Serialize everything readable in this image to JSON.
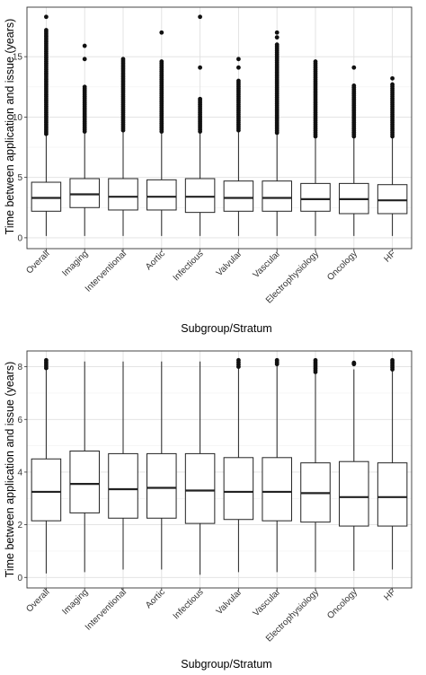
{
  "chart_data": [
    {
      "type": "boxplot",
      "xlabel": "Subgroup/Stratum",
      "ylabel": "Time between application and issue (years)",
      "ylim": [
        -0.9,
        19.1
      ],
      "yticks": [
        0,
        5,
        10,
        15
      ],
      "categories": [
        "Overall",
        "Imaging",
        "Interventional",
        "Aortic",
        "Infectious",
        "Valvular",
        "Vascular",
        "Electrophysiology",
        "Oncology",
        "HF"
      ],
      "boxes": [
        {
          "category": "Overall",
          "whisker_low": 0.15,
          "q1": 2.2,
          "median": 3.3,
          "q3": 4.6,
          "whisker_high": 8.5,
          "outliers_from": 8.6,
          "outliers_to": 17.2,
          "extra_outliers": [
            18.3
          ]
        },
        {
          "category": "Imaging",
          "whisker_low": 0.15,
          "q1": 2.5,
          "median": 3.6,
          "q3": 4.9,
          "whisker_high": 8.7,
          "outliers_from": 8.8,
          "outliers_to": 12.5,
          "extra_outliers": [
            14.8,
            15.9
          ]
        },
        {
          "category": "Interventional",
          "whisker_low": 0.15,
          "q1": 2.3,
          "median": 3.4,
          "q3": 4.9,
          "whisker_high": 8.8,
          "outliers_from": 8.9,
          "outliers_to": 14.8,
          "extra_outliers": []
        },
        {
          "category": "Aortic",
          "whisker_low": 0.15,
          "q1": 2.3,
          "median": 3.4,
          "q3": 4.8,
          "whisker_high": 8.7,
          "outliers_from": 8.8,
          "outliers_to": 14.6,
          "extra_outliers": [
            17.0
          ]
        },
        {
          "category": "Infectious",
          "whisker_low": 0.15,
          "q1": 2.1,
          "median": 3.4,
          "q3": 4.9,
          "whisker_high": 8.7,
          "outliers_from": 8.8,
          "outliers_to": 11.5,
          "extra_outliers": [
            14.1,
            18.3
          ]
        },
        {
          "category": "Valvular",
          "whisker_low": 0.15,
          "q1": 2.2,
          "median": 3.3,
          "q3": 4.7,
          "whisker_high": 8.8,
          "outliers_from": 8.9,
          "outliers_to": 13.0,
          "extra_outliers": [
            14.1,
            14.8
          ]
        },
        {
          "category": "Vascular",
          "whisker_low": 0.15,
          "q1": 2.2,
          "median": 3.3,
          "q3": 4.7,
          "whisker_high": 8.6,
          "outliers_from": 8.7,
          "outliers_to": 16.0,
          "extra_outliers": [
            16.6,
            17.0
          ]
        },
        {
          "category": "Electrophysiology",
          "whisker_low": 0.15,
          "q1": 2.2,
          "median": 3.2,
          "q3": 4.5,
          "whisker_high": 8.3,
          "outliers_from": 8.4,
          "outliers_to": 14.6,
          "extra_outliers": []
        },
        {
          "category": "Oncology",
          "whisker_low": 0.15,
          "q1": 2.0,
          "median": 3.2,
          "q3": 4.5,
          "whisker_high": 8.3,
          "outliers_from": 8.4,
          "outliers_to": 12.6,
          "extra_outliers": [
            14.1
          ]
        },
        {
          "category": "HF",
          "whisker_low": 0.15,
          "q1": 2.0,
          "median": 3.1,
          "q3": 4.4,
          "whisker_high": 8.3,
          "outliers_from": 8.4,
          "outliers_to": 12.7,
          "extra_outliers": [
            13.2
          ]
        }
      ],
      "grid": true
    },
    {
      "type": "boxplot",
      "xlabel": "Subgroup/Stratum",
      "ylabel": "Time between application and issue (years)",
      "ylim": [
        -0.4,
        8.6
      ],
      "yticks": [
        0,
        2,
        4,
        6,
        8
      ],
      "categories": [
        "Overall",
        "Imaging",
        "Interventional",
        "Aortic",
        "Infectious",
        "Valvular",
        "Vascular",
        "Electrophysiology",
        "Oncology",
        "HF"
      ],
      "boxes": [
        {
          "category": "Overall",
          "whisker_low": 0.15,
          "q1": 2.15,
          "median": 3.25,
          "q3": 4.5,
          "whisker_high": 7.9,
          "outliers_from": 7.95,
          "outliers_to": 8.25,
          "extra_outliers": []
        },
        {
          "category": "Imaging",
          "whisker_low": 0.2,
          "q1": 2.45,
          "median": 3.55,
          "q3": 4.8,
          "whisker_high": 8.2,
          "outliers_from": null,
          "outliers_to": null,
          "extra_outliers": []
        },
        {
          "category": "Interventional",
          "whisker_low": 0.3,
          "q1": 2.25,
          "median": 3.35,
          "q3": 4.7,
          "whisker_high": 8.2,
          "outliers_from": null,
          "outliers_to": null,
          "extra_outliers": []
        },
        {
          "category": "Aortic",
          "whisker_low": 0.3,
          "q1": 2.25,
          "median": 3.4,
          "q3": 4.7,
          "whisker_high": 8.2,
          "outliers_from": null,
          "outliers_to": null,
          "extra_outliers": []
        },
        {
          "category": "Infectious",
          "whisker_low": 0.1,
          "q1": 2.05,
          "median": 3.3,
          "q3": 4.7,
          "whisker_high": 8.2,
          "outliers_from": null,
          "outliers_to": null,
          "extra_outliers": []
        },
        {
          "category": "Valvular",
          "whisker_low": 0.2,
          "q1": 2.2,
          "median": 3.25,
          "q3": 4.55,
          "whisker_high": 7.95,
          "outliers_from": 8.0,
          "outliers_to": 8.25,
          "extra_outliers": []
        },
        {
          "category": "Vascular",
          "whisker_low": 0.2,
          "q1": 2.15,
          "median": 3.25,
          "q3": 4.55,
          "whisker_high": 8.05,
          "outliers_from": 8.1,
          "outliers_to": 8.25,
          "extra_outliers": []
        },
        {
          "category": "Electrophysiology",
          "whisker_low": 0.2,
          "q1": 2.1,
          "median": 3.2,
          "q3": 4.35,
          "whisker_high": 7.75,
          "outliers_from": 7.8,
          "outliers_to": 8.25,
          "extra_outliers": []
        },
        {
          "category": "Oncology",
          "whisker_low": 0.25,
          "q1": 1.95,
          "median": 3.05,
          "q3": 4.4,
          "whisker_high": 7.9,
          "outliers_from": 8.1,
          "outliers_to": 8.15,
          "extra_outliers": []
        },
        {
          "category": "HF",
          "whisker_low": 0.3,
          "q1": 1.95,
          "median": 3.05,
          "q3": 4.35,
          "whisker_high": 7.85,
          "outliers_from": 7.9,
          "outliers_to": 8.25,
          "extra_outliers": []
        }
      ],
      "grid": true
    }
  ],
  "colors": {
    "panel_border": "#333333",
    "grid_major": "#e0e0e0",
    "grid_minor": "#f0f0f0",
    "box_fill": "#ffffff",
    "box_line": "#222222",
    "outlier": "#111111",
    "text": "#000000",
    "tick_text": "#333333"
  }
}
